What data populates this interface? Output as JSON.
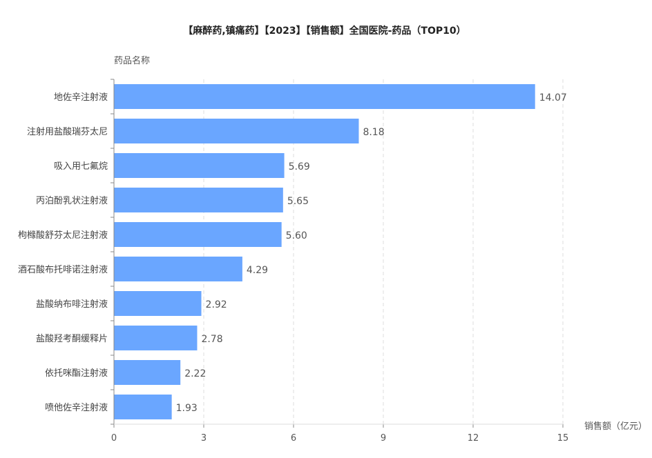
{
  "chart_data": {
    "type": "bar",
    "orientation": "horizontal",
    "title": "【麻醉药,镇痛药】【2023】【销售额】全国医院-药品（TOP10）",
    "ylabel": "药品名称",
    "xlabel": "销售额（亿元）",
    "xlim": [
      0,
      15
    ],
    "xticks": [
      0,
      3,
      6,
      9,
      12,
      15
    ],
    "categories": [
      "地佐辛注射液",
      "注射用盐酸瑞芬太尼",
      "吸入用七氟烷",
      "丙泊酚乳状注射液",
      "枸橼酸舒芬太尼注射液",
      "酒石酸布托啡诺注射液",
      "盐酸纳布啡注射液",
      "盐酸羟考酮缓释片",
      "依托咪酯注射液",
      "喷他佐辛注射液"
    ],
    "values": [
      14.07,
      8.18,
      5.69,
      5.65,
      5.6,
      4.29,
      2.92,
      2.78,
      2.22,
      1.93
    ],
    "value_labels": [
      "14.07",
      "8.18",
      "5.69",
      "5.65",
      "5.60",
      "4.29",
      "2.92",
      "2.78",
      "2.22",
      "1.93"
    ],
    "grid": "vertical dashed",
    "colors": {
      "bar": "#6aa6ff",
      "text": "#555555",
      "title": "#222222",
      "grid": "#dddddd",
      "axis": "#888888"
    }
  }
}
